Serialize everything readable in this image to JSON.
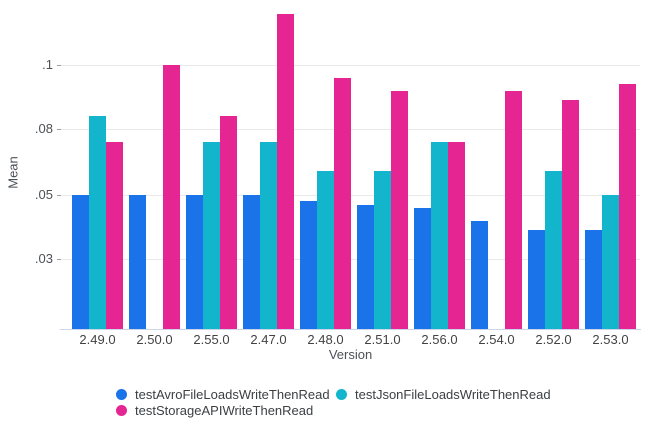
{
  "chart_data": {
    "type": "bar",
    "title": "",
    "xlabel": "Version",
    "ylabel": "Mean",
    "grid": true,
    "legend_position": "bottom",
    "y_ticks": [
      ".03",
      ".05",
      ".08",
      ".1"
    ],
    "y_tick_values": [
      0.03,
      0.05,
      0.08,
      0.1
    ],
    "ylim": [
      0,
      0.12
    ],
    "categories": [
      "2.49.0",
      "2.50.0",
      "2.55.0",
      "2.47.0",
      "2.48.0",
      "2.51.0",
      "2.56.0",
      "2.54.0",
      "2.52.0",
      "2.53.0"
    ],
    "series": [
      {
        "name": "testAvroFileLoadsWriteThenRead",
        "color": "#1A73E8",
        "values": [
          0.05,
          0.05,
          0.05,
          0.05,
          0.048,
          0.047,
          0.046,
          0.042,
          0.039,
          0.039
        ]
      },
      {
        "name": "testJsonFileLoadsWriteThenRead",
        "color": "#12B5CB",
        "values": [
          0.084,
          null,
          0.074,
          0.074,
          0.061,
          0.061,
          0.074,
          null,
          0.061,
          0.05
        ]
      },
      {
        "name": "testStorageAPIWriteThenRead",
        "color": "#E52592",
        "values": [
          0.074,
          0.1,
          0.084,
          0.116,
          0.096,
          0.092,
          0.074,
          0.092,
          0.089,
          0.094
        ]
      }
    ]
  }
}
